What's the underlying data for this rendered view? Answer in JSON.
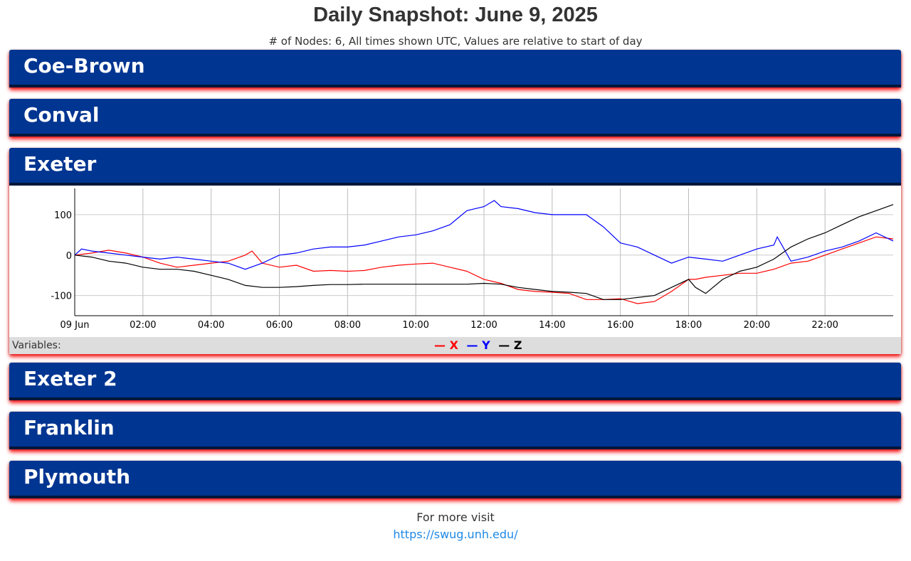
{
  "header": {
    "title": "Daily Snapshot: June 9, 2025",
    "subtitle": "# of Nodes: 6, All times shown UTC, Values are relative to start of day"
  },
  "nodes": [
    {
      "name": "Coe-Brown"
    },
    {
      "name": "Conval"
    },
    {
      "name": "Exeter"
    },
    {
      "name": "Exeter 2"
    },
    {
      "name": "Franklin"
    },
    {
      "name": "Plymouth"
    }
  ],
  "legend": {
    "label": "Variables:",
    "items": [
      {
        "name": "X",
        "color": "#ff0000"
      },
      {
        "name": "Y",
        "color": "#0000ff"
      },
      {
        "name": "Z",
        "color": "#000000"
      }
    ]
  },
  "footer": {
    "text": "For more visit",
    "link": "https://swug.unh.edu/"
  },
  "chart_data": {
    "type": "line",
    "x_unit": "hours UTC",
    "xlim": [
      0,
      24
    ],
    "ylim": [
      -150,
      165
    ],
    "x_tick_labels": [
      "09 Jun",
      "02:00",
      "04:00",
      "06:00",
      "08:00",
      "10:00",
      "12:00",
      "14:00",
      "16:00",
      "18:00",
      "20:00",
      "22:00"
    ],
    "x_ticks": [
      0,
      2,
      4,
      6,
      8,
      10,
      12,
      14,
      16,
      18,
      20,
      22
    ],
    "y_ticks": [
      100,
      0,
      -100
    ],
    "grid": true,
    "legend_position": "bottom",
    "series": [
      {
        "name": "X",
        "color": "#ff0000",
        "x": [
          0,
          0.5,
          1,
          1.5,
          2,
          2.5,
          3,
          3.5,
          4,
          4.5,
          5,
          5.2,
          5.5,
          6,
          6.5,
          7,
          7.5,
          8,
          8.5,
          9,
          9.5,
          10,
          10.5,
          11,
          11.5,
          12,
          12.5,
          13,
          13.5,
          14,
          14.5,
          15,
          15.5,
          16,
          16.5,
          17,
          17.5,
          18,
          18.2,
          18.5,
          19,
          19.5,
          20,
          20.5,
          21,
          21.5,
          22,
          22.5,
          23,
          23.5,
          24
        ],
        "y": [
          0,
          5,
          12,
          5,
          -5,
          -20,
          -30,
          -25,
          -20,
          -15,
          0,
          10,
          -20,
          -30,
          -25,
          -40,
          -38,
          -40,
          -38,
          -30,
          -25,
          -22,
          -20,
          -30,
          -40,
          -60,
          -70,
          -85,
          -90,
          -92,
          -95,
          -110,
          -110,
          -108,
          -120,
          -115,
          -90,
          -60,
          -60,
          -55,
          -50,
          -45,
          -45,
          -35,
          -20,
          -15,
          0,
          15,
          30,
          45,
          40
        ]
      },
      {
        "name": "Y",
        "color": "#0000ff",
        "x": [
          0,
          0.2,
          0.5,
          1,
          1.5,
          2,
          2.5,
          3,
          3.5,
          4,
          4.5,
          5,
          5.5,
          6,
          6.5,
          7,
          7.5,
          8,
          8.5,
          9,
          9.5,
          10,
          10.5,
          11,
          11.5,
          12,
          12.3,
          12.5,
          13,
          13.5,
          14,
          14.5,
          15,
          15.5,
          16,
          16.5,
          17,
          17.5,
          18,
          18.5,
          19,
          19.5,
          20,
          20.5,
          20.6,
          21,
          21.5,
          22,
          22.5,
          23,
          23.5,
          24
        ],
        "y": [
          0,
          15,
          10,
          5,
          0,
          -5,
          -10,
          -5,
          -10,
          -15,
          -20,
          -35,
          -20,
          0,
          5,
          15,
          20,
          20,
          25,
          35,
          45,
          50,
          60,
          75,
          110,
          120,
          135,
          120,
          115,
          105,
          100,
          100,
          100,
          70,
          30,
          20,
          0,
          -20,
          -5,
          -10,
          -15,
          0,
          15,
          25,
          45,
          -15,
          -5,
          10,
          20,
          35,
          55,
          35
        ]
      },
      {
        "name": "Z",
        "color": "#000000",
        "x": [
          0,
          0.5,
          1,
          1.5,
          2,
          2.5,
          3,
          3.5,
          4,
          4.5,
          5,
          5.5,
          6,
          6.5,
          7,
          7.5,
          8,
          8.5,
          9,
          9.5,
          10,
          10.5,
          11,
          11.5,
          12,
          12.5,
          13,
          13.5,
          14,
          14.5,
          15,
          15.5,
          16,
          16.5,
          17,
          17.5,
          18,
          18.2,
          18.5,
          19,
          19.5,
          20,
          20.5,
          21,
          21.5,
          22,
          22.5,
          23,
          23.5,
          24
        ],
        "y": [
          0,
          -5,
          -15,
          -20,
          -30,
          -35,
          -35,
          -40,
          -50,
          -60,
          -75,
          -80,
          -80,
          -78,
          -75,
          -73,
          -73,
          -72,
          -72,
          -72,
          -72,
          -72,
          -72,
          -72,
          -70,
          -72,
          -80,
          -85,
          -90,
          -92,
          -95,
          -110,
          -110,
          -105,
          -100,
          -80,
          -60,
          -80,
          -95,
          -60,
          -40,
          -30,
          -10,
          20,
          40,
          55,
          75,
          95,
          110,
          125
        ]
      }
    ]
  }
}
